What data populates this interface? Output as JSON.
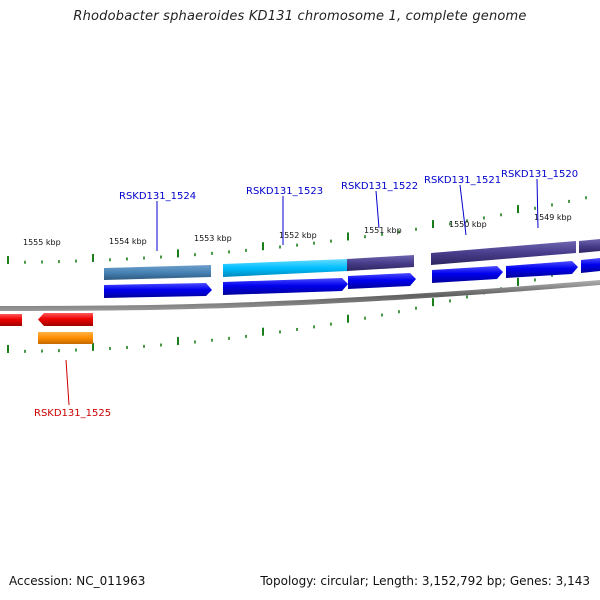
{
  "title": "Rhodobacter sphaeroides KD131 chromosome 1, complete genome",
  "footer": {
    "accession": "Accession: NC_011963",
    "summary": "Topology: circular; Length: 3,152,792 bp; Genes: 3,143"
  },
  "scale_labels": [
    "1555 kbp",
    "1554 kbp",
    "1553 kbp",
    "1552 kbp",
    "1551 kbp",
    "1550 kbp",
    "1549 kbp"
  ],
  "gene_labels": [
    {
      "id": "RSKD131_1524",
      "strand": "plus",
      "color": "#0000cc"
    },
    {
      "id": "RSKD131_1523",
      "strand": "plus",
      "color": "#0000cc"
    },
    {
      "id": "RSKD131_1522",
      "strand": "plus",
      "color": "#0000cc"
    },
    {
      "id": "RSKD131_1521",
      "strand": "plus",
      "color": "#0000cc"
    },
    {
      "id": "RSKD131_1520",
      "strand": "plus",
      "color": "#0000cc"
    },
    {
      "id": "RSKD131_1525",
      "strand": "minus",
      "color": "#cc0000"
    }
  ],
  "colors": {
    "cds_plus": "#0000ee",
    "cds_minus": "#ee0000",
    "gene_minus": "#ff8c00",
    "cog_steel": "#4682b4",
    "cog_cyan": "#00bfff",
    "cog_slate": "#483d8b",
    "ticks": "#1a7f1a",
    "backbone": "#808080"
  }
}
